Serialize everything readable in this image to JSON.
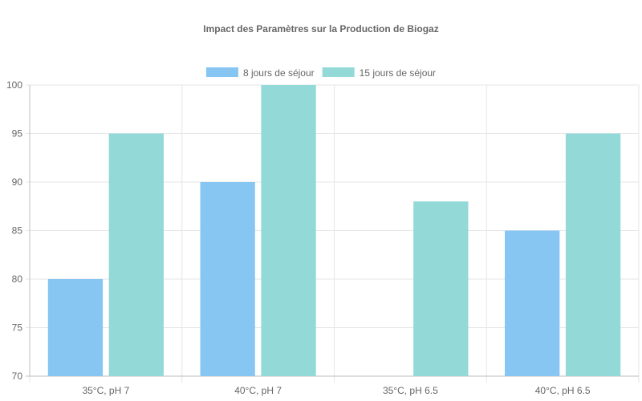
{
  "chart_data": {
    "type": "bar",
    "title": "Impact des Paramètres sur la Production de Biogaz",
    "xlabel": "",
    "ylabel": "",
    "categories": [
      "35°C, pH 7",
      "40°C, pH 7",
      "35°C, pH 6.5",
      "40°C, pH 6.5"
    ],
    "series": [
      {
        "name": "8 jours de séjour",
        "values": [
          80,
          90,
          null,
          85
        ],
        "color": "#87c6f2"
      },
      {
        "name": "15 jours de séjour",
        "values": [
          95,
          100,
          88,
          95
        ],
        "color": "#92d9d7"
      }
    ],
    "ylim": [
      70,
      100
    ],
    "yticks": [
      70,
      75,
      80,
      85,
      90,
      95,
      100
    ],
    "grid": true,
    "legend_position": "top"
  }
}
